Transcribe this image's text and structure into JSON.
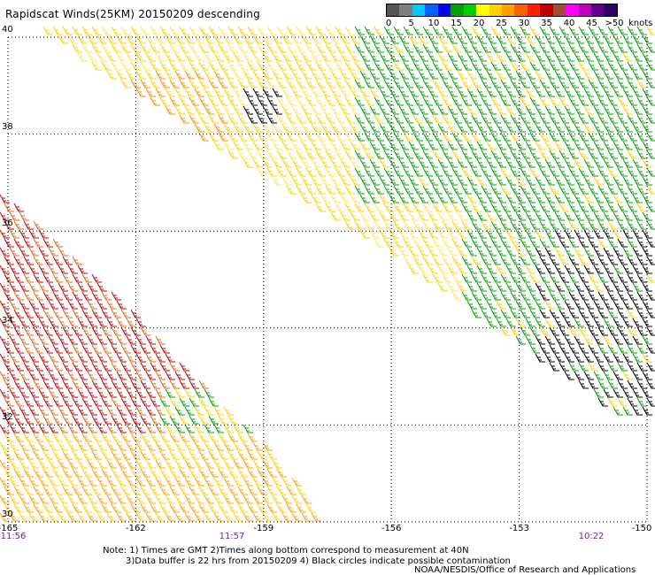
{
  "header": {
    "title": "Rapidscat Winds(25KM) 20150209 descending"
  },
  "legend": {
    "colors": [
      "#555555",
      "#7f7f7f",
      "#00c8ff",
      "#0064ff",
      "#0000ff",
      "#00a000",
      "#00d000",
      "#ffff00",
      "#ffd000",
      "#ffa000",
      "#ff6000",
      "#ff2000",
      "#c00000",
      "#a05030",
      "#ff00ff",
      "#c000c0",
      "#600090",
      "#300060"
    ],
    "labels": [
      "0",
      "5",
      "10",
      "15",
      "20",
      "25",
      "30",
      "35",
      "40",
      "45",
      ">50"
    ],
    "units": "knots"
  },
  "map": {
    "lat_labels": [
      "40",
      "38",
      "36",
      "34",
      "32",
      "30"
    ],
    "lon_labels": [
      "-165",
      "-162",
      "-159",
      "-156",
      "-153",
      "-150"
    ],
    "time_labels": [
      "11:56",
      "11:57",
      "10:22"
    ],
    "lat_range": [
      30,
      40
    ],
    "lon_range": [
      -165,
      -150
    ]
  },
  "notes": {
    "line1": "Note: 1) Times are GMT 2)Times along bottom correspond to measurement at 40N",
    "line2": "3)Data buffer is 22 hrs from 20150209 4) Black circles indicate possible contamination"
  },
  "credit": "NOAA/NESDIS/Office of Research and Applications"
}
